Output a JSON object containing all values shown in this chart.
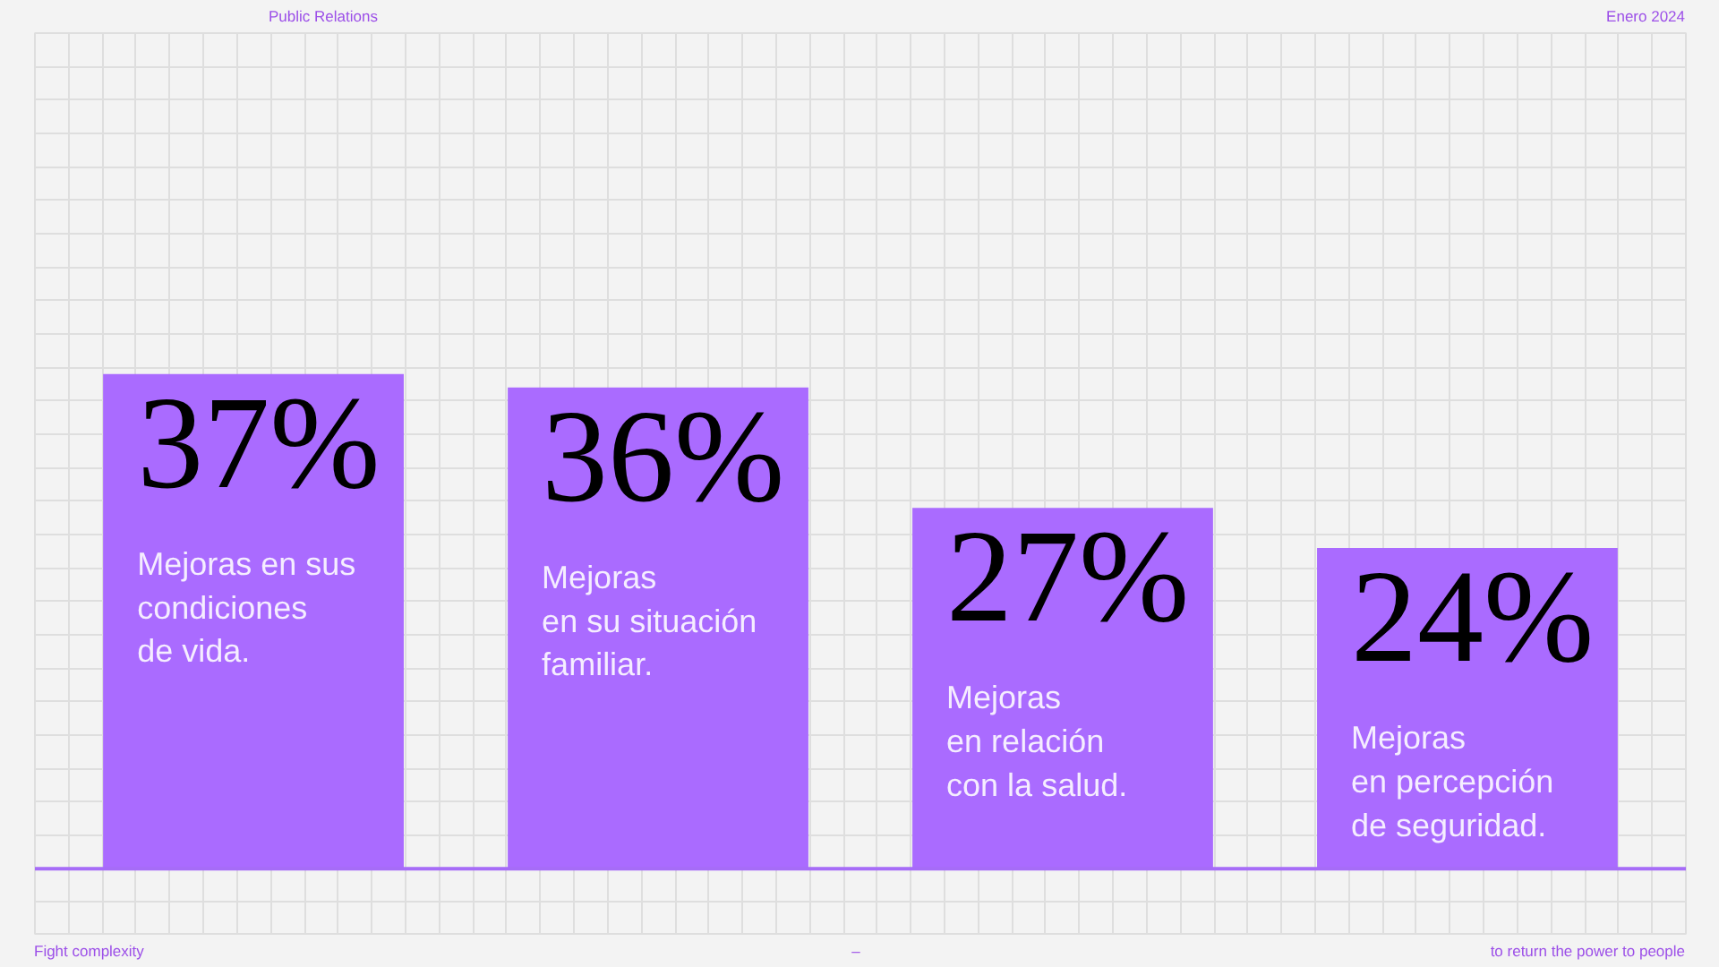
{
  "chart_data": {
    "type": "bar",
    "categories": [
      "Mejoras en sus\ncondiciones\nde vida.",
      "Mejoras\nen su situación\nfamiliar.",
      "Mejoras\nen relación\ncon la salud.",
      "Mejoras\nen percepción\nde seguridad."
    ],
    "values": [
      37,
      36,
      27,
      24
    ],
    "color": "#aa6bff",
    "value_labels": [
      "37%",
      "36%",
      "27%",
      "24%"
    ],
    "ylim": [
      -5,
      62.5
    ],
    "yticks": [
      {
        "value": -5,
        "label": null
      },
      {
        "value": -2.5,
        "label": null
      },
      {
        "value": 0,
        "label": null
      },
      {
        "value": 2.5,
        "label": null
      },
      {
        "value": 5,
        "label": null
      },
      {
        "value": 7.5,
        "label": null
      },
      {
        "value": 10,
        "label": null
      },
      {
        "value": 12.5,
        "label": null
      },
      {
        "value": 15,
        "label": null
      },
      {
        "value": 17.5,
        "label": null
      },
      {
        "value": 20,
        "label": null
      },
      {
        "value": 22.5,
        "label": null
      },
      {
        "value": 25,
        "label": null
      },
      {
        "value": 27.5,
        "label": null
      },
      {
        "value": 30,
        "label": null
      },
      {
        "value": 32.5,
        "label": null
      },
      {
        "value": 35,
        "label": null
      },
      {
        "value": 37.5,
        "label": null
      },
      {
        "value": 40,
        "label": null
      },
      {
        "value": 42.5,
        "label": null
      },
      {
        "value": 45,
        "label": null
      },
      {
        "value": 47.5,
        "label": null
      },
      {
        "value": 50,
        "label": null
      },
      {
        "value": 52.5,
        "label": null
      },
      {
        "value": 55,
        "label": null
      },
      {
        "value": 57.5,
        "label": null
      },
      {
        "value": 60,
        "label": null
      },
      {
        "value": 62.5,
        "label": null
      }
    ],
    "grid": true,
    "tick_labels": "x",
    "ref_lines": [
      {
        "axis": "y",
        "value": 0,
        "color": "#a66cf7"
      }
    ],
    "annotations": [
      "Public Relations",
      "Enero 2024",
      "Fight complexity",
      "–",
      "to return the power to people"
    ]
  }
}
